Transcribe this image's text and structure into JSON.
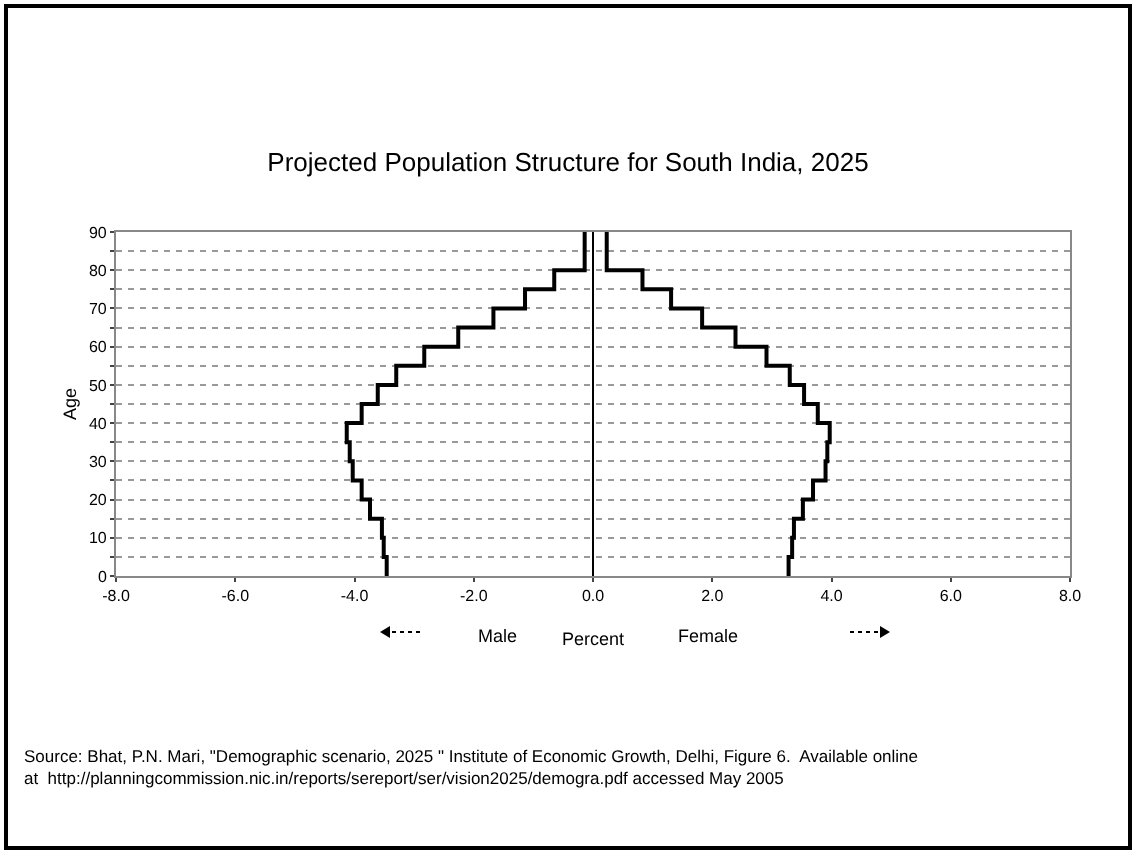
{
  "chart_data": {
    "type": "step",
    "orientation": "horizontal",
    "title": "Projected Population Structure for South India, 2025",
    "xlabel": "Percent",
    "ylabel": "Age",
    "x": [
      0,
      5,
      10,
      15,
      20,
      25,
      30,
      35,
      40,
      45,
      50,
      55,
      60,
      65,
      70,
      75,
      80,
      90
    ],
    "series": [
      {
        "color": "#000000",
        "values": [
          -3.46,
          -3.51,
          -3.54,
          -3.74,
          -3.88,
          -4.03,
          -4.08,
          -4.13,
          -3.88,
          -3.61,
          -3.3,
          -2.83,
          -2.26,
          -1.67,
          -1.14,
          -0.65,
          -0.14,
          -0.14
        ]
      },
      {
        "color": "#000000",
        "values": [
          3.28,
          3.34,
          3.37,
          3.52,
          3.69,
          3.9,
          3.93,
          3.97,
          3.77,
          3.54,
          3.3,
          2.91,
          2.39,
          1.83,
          1.31,
          0.83,
          0.23,
          0.23
        ]
      }
    ],
    "xlim": [
      -8,
      8
    ],
    "xticks": [
      {
        "value": -8,
        "label": "-8.0"
      },
      {
        "value": -6,
        "label": "-6.0"
      },
      {
        "value": -4,
        "label": "-4.0"
      },
      {
        "value": -2,
        "label": "-2.0"
      },
      {
        "value": 0,
        "label": "0.0"
      },
      {
        "value": 2,
        "label": "2.0"
      },
      {
        "value": 4,
        "label": "4.0"
      },
      {
        "value": 6,
        "label": "6.0"
      },
      {
        "value": 8,
        "label": "8.0"
      }
    ],
    "ylim": [
      0,
      90
    ],
    "yticks": [
      0,
      {
        "value": 5,
        "label": null
      },
      10,
      {
        "value": 15,
        "label": null
      },
      20,
      {
        "value": 25,
        "label": null
      },
      30,
      {
        "value": 35,
        "label": null
      },
      40,
      {
        "value": 45,
        "label": null
      },
      50,
      {
        "value": 55,
        "label": null
      },
      60,
      {
        "value": 65,
        "label": null
      },
      70,
      {
        "value": 75,
        "label": null
      },
      80,
      {
        "value": 85,
        "label": null
      },
      90
    ],
    "grid": "y",
    "line_style": "solid",
    "marker": "none",
    "ref_lines": [
      {
        "axis": "x",
        "value": 0,
        "color": "#000000"
      }
    ],
    "annotations": [
      "Male",
      "Female",
      "Source: Bhat, P.N. Mari, \"Demographic scenario, 2025 \" Institute of Economic Growth, Delhi, Figure 6.  Available online at  http://planningcommission.nic.in/reports/sereport/ser/vision2025/demogra.pdf accessed May 2005"
    ]
  }
}
